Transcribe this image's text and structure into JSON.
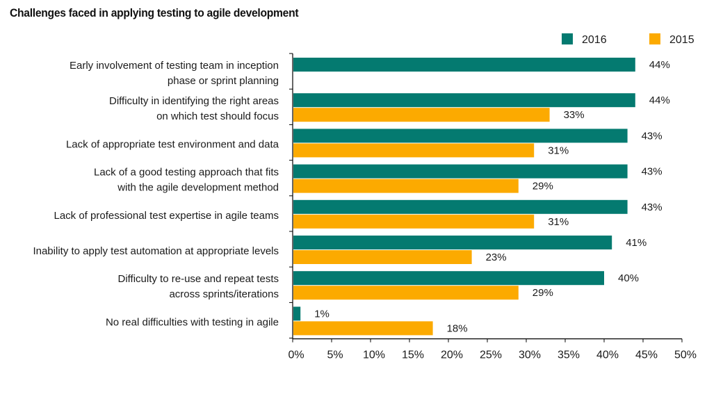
{
  "chart_data": {
    "type": "bar",
    "orientation": "horizontal",
    "title": "Challenges faced in applying testing to agile development",
    "xlabel": "",
    "ylabel": "",
    "xlim": [
      0,
      50
    ],
    "x_ticks": [
      "0%",
      "5%",
      "10%",
      "15%",
      "20%",
      "25%",
      "30%",
      "35%",
      "40%",
      "45%",
      "50%"
    ],
    "grid": false,
    "legend_position": "top-right",
    "categories": [
      [
        "Early involvement of testing team in inception",
        "phase or sprint planning"
      ],
      [
        "Difficulty in identifying the right areas",
        "on which test should focus"
      ],
      [
        "Lack of appropriate test environment and data"
      ],
      [
        "Lack of a good testing approach that fits",
        "with the agile development method"
      ],
      [
        "Lack of professional test expertise in  agile teams"
      ],
      [
        "Inability to apply test automation at  appropriate levels"
      ],
      [
        "Difficulty to re-use and repeat tests",
        "across sprints/iterations"
      ],
      [
        "No real difficulties with testing in  agile"
      ]
    ],
    "series": [
      {
        "name": "2016",
        "color": "#047A70",
        "values": [
          44,
          44,
          43,
          43,
          43,
          41,
          40,
          1
        ]
      },
      {
        "name": "2015",
        "color": "#FCAA00",
        "values": [
          null,
          33,
          31,
          29,
          31,
          23,
          29,
          18
        ]
      }
    ],
    "value_suffix": "%"
  }
}
